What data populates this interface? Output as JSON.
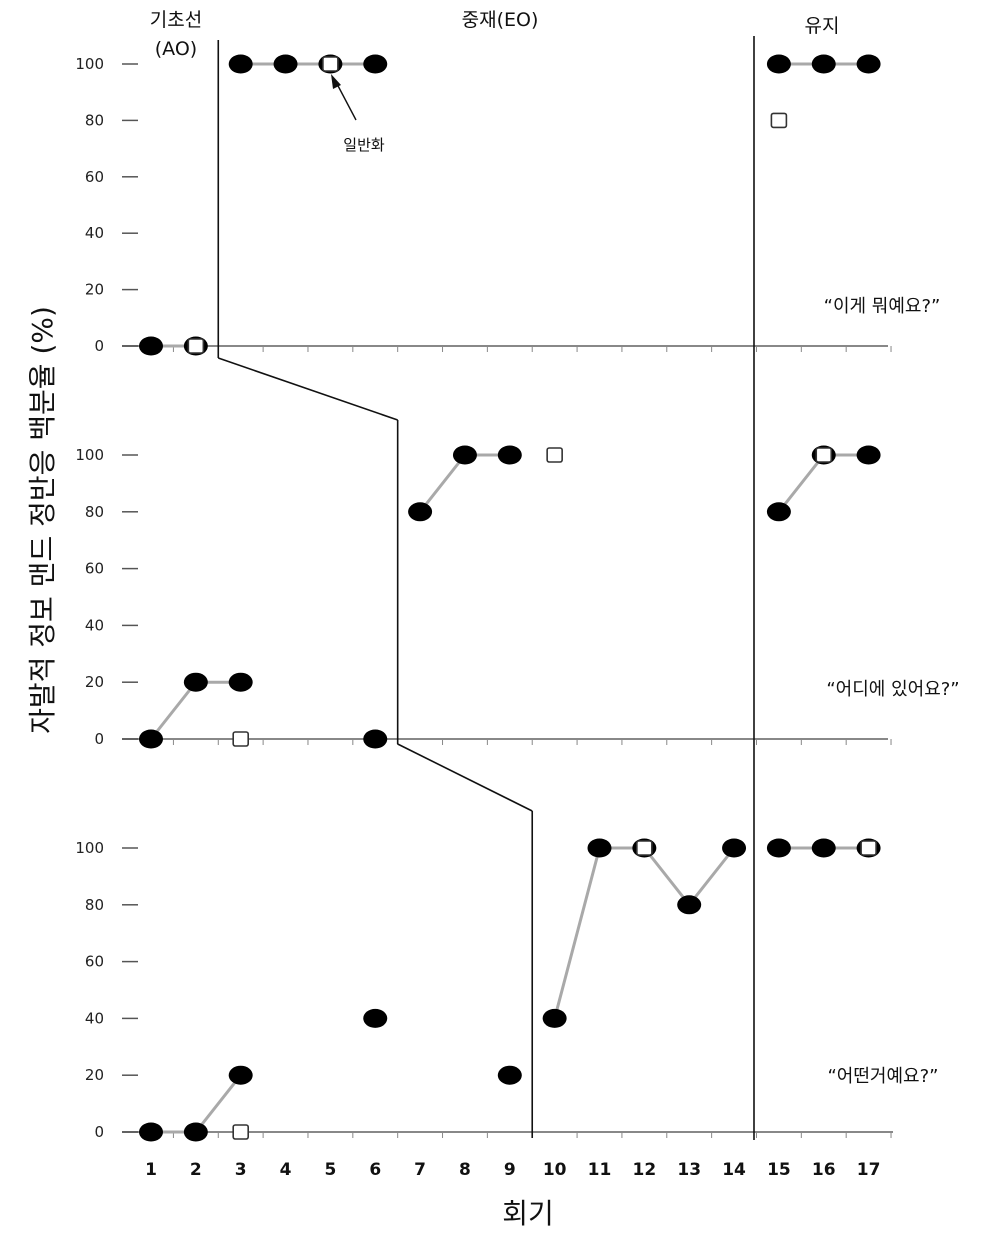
{
  "chart_data": {
    "type": "line",
    "ylabel": "자발적 정보 맨드 정반응 백분율 (%)",
    "xlabel": "회기",
    "x": [
      1,
      2,
      3,
      4,
      5,
      6,
      7,
      8,
      9,
      10,
      11,
      12,
      13,
      14,
      15,
      16,
      17
    ],
    "ylim": [
      0,
      100
    ],
    "yticks": [
      0,
      20,
      40,
      60,
      80,
      100
    ],
    "phases": [
      {
        "label": "기초선\n(AO)",
        "label_line1": "기초선",
        "label_line2": "(AO)"
      },
      {
        "label": "중재(EO)"
      },
      {
        "label": "유지"
      }
    ],
    "annotation": "일반화",
    "panels": [
      {
        "question": "“이게 뭐예요?”",
        "phase_change_after_session": 2,
        "maintenance_starts_session": 15,
        "series": [
          {
            "marker": "filled-circle",
            "connected_segments": [
              [
                [
                  1,
                  0
                ],
                [
                  2,
                  0
                ]
              ],
              [
                [
                  3,
                  100
                ],
                [
                  4,
                  100
                ],
                [
                  5,
                  100
                ],
                [
                  6,
                  100
                ]
              ],
              [
                [
                  15,
                  100
                ],
                [
                  16,
                  100
                ],
                [
                  17,
                  100
                ]
              ]
            ]
          },
          {
            "marker": "open-square",
            "points": [
              [
                2,
                0
              ],
              [
                5,
                100
              ],
              [
                15,
                80
              ]
            ]
          }
        ]
      },
      {
        "question": "“어디에 있어요?”",
        "phase_change_after_session": 6,
        "maintenance_starts_session": 15,
        "series": [
          {
            "marker": "filled-circle",
            "connected_segments": [
              [
                [
                  1,
                  0
                ],
                [
                  2,
                  20
                ],
                [
                  3,
                  20
                ]
              ],
              [
                [
                  6,
                  0
                ]
              ],
              [
                [
                  7,
                  80
                ],
                [
                  8,
                  100
                ],
                [
                  9,
                  100
                ]
              ],
              [
                [
                  15,
                  80
                ],
                [
                  16,
                  100
                ],
                [
                  17,
                  100
                ]
              ]
            ]
          },
          {
            "marker": "open-square",
            "points": [
              [
                3,
                0
              ],
              [
                10,
                100
              ],
              [
                16,
                100
              ]
            ]
          }
        ]
      },
      {
        "question": "“어떤거예요?”",
        "phase_change_after_session": 9,
        "maintenance_starts_session": 15,
        "series": [
          {
            "marker": "filled-circle",
            "connected_segments": [
              [
                [
                  1,
                  0
                ],
                [
                  2,
                  0
                ],
                [
                  3,
                  20
                ]
              ],
              [
                [
                  6,
                  40
                ]
              ],
              [
                [
                  9,
                  20
                ]
              ],
              [
                [
                  10,
                  40
                ],
                [
                  11,
                  100
                ],
                [
                  12,
                  100
                ],
                [
                  13,
                  80
                ],
                [
                  14,
                  100
                ]
              ],
              [
                [
                  15,
                  100
                ],
                [
                  16,
                  100
                ],
                [
                  17,
                  100
                ]
              ]
            ]
          },
          {
            "marker": "open-square",
            "points": [
              [
                3,
                0
              ],
              [
                12,
                100
              ],
              [
                17,
                100
              ]
            ]
          }
        ]
      }
    ]
  }
}
